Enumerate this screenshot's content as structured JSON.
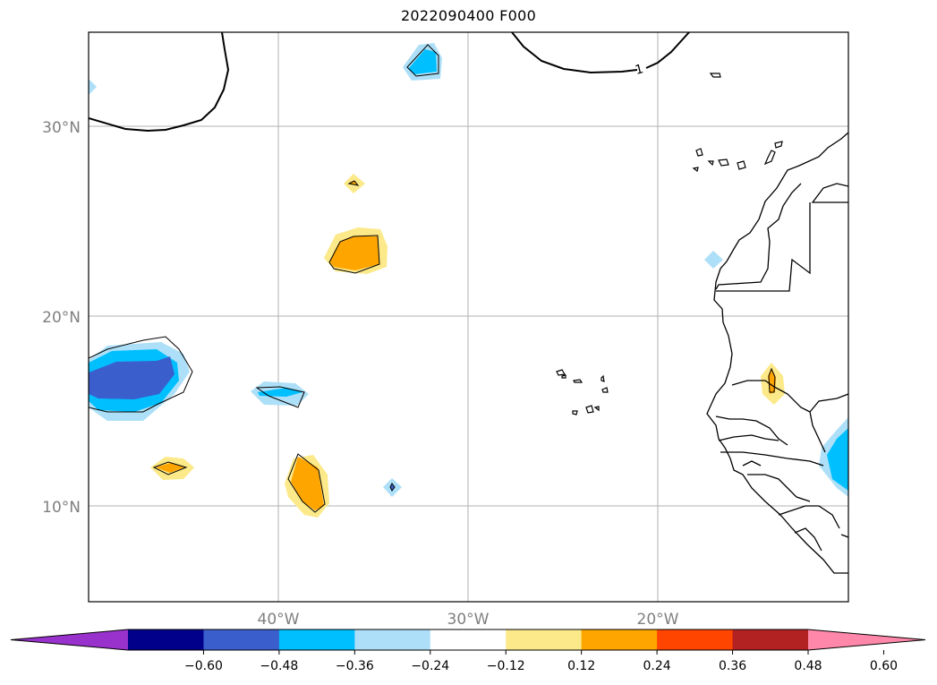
{
  "title": "2022090400 F000",
  "lat_labels": [
    {
      "text": "30°N",
      "lat": 30
    },
    {
      "text": "20°N",
      "lat": 20
    },
    {
      "text": "10°N",
      "lat": 10
    }
  ],
  "lon_labels": [
    {
      "text": "40°W",
      "lon": -40
    },
    {
      "text": "30°W",
      "lon": -30
    },
    {
      "text": "20°W",
      "lon": -20
    }
  ],
  "contour_label": "1",
  "colorbar": {
    "colors": [
      "#9932CC",
      "#00008B",
      "#3A5FCD",
      "#00BFFF",
      "#ADE0F8",
      "#FFFFFF",
      "#FCE989",
      "#FFA500",
      "#FF4500",
      "#B22222",
      "#FF88AA"
    ],
    "ticks": [
      "−0.60",
      "−0.48",
      "−0.36",
      "−0.24",
      "−0.12",
      "0.12",
      "0.24",
      "0.36",
      "0.48",
      "0.60"
    ]
  }
}
